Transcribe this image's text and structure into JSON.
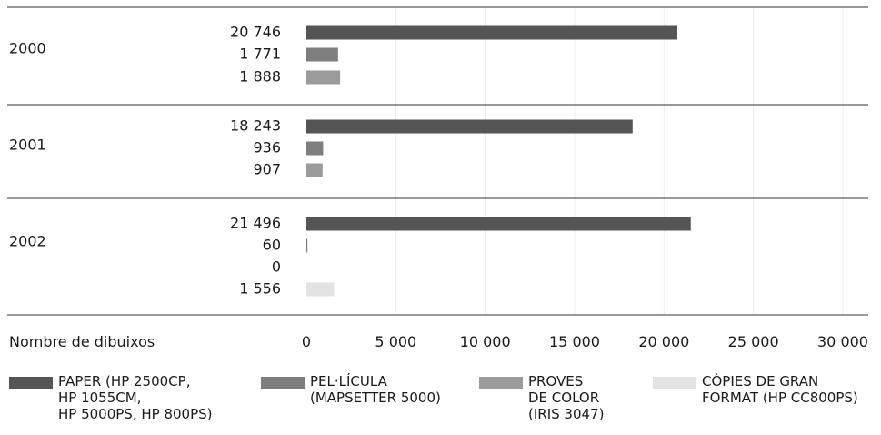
{
  "chart_data": {
    "type": "bar",
    "orientation": "horizontal",
    "xlabel": "Nombre de dibuixos",
    "xlim": [
      0,
      30000
    ],
    "xticks": [
      "0",
      "5 000",
      "10 000",
      "15 000",
      "20 000",
      "25 000",
      "30 000"
    ],
    "tick_values": [
      0,
      5000,
      10000,
      15000,
      20000,
      25000,
      30000
    ],
    "grid": true,
    "legend_position": "bottom",
    "series": [
      {
        "name": "PAPER (HP 2500CP,\nHP 1055CM,\nHP 5000PS, HP 800PS)",
        "color": "#555555"
      },
      {
        "name": "PEL·LÍCULA\n(MAPSETTER 5000)",
        "color": "#7e7e7e"
      },
      {
        "name": "PROVES\nDE COLOR\n(IRIS 3047)",
        "color": "#9b9b9b"
      },
      {
        "name": "CÒPIES DE GRAN\nFORMAT (HP CC800PS)",
        "color": "#e3e3e3"
      }
    ],
    "groups": [
      {
        "year": "2000",
        "bars": [
          {
            "series": 0,
            "value": 20746,
            "label": "20 746"
          },
          {
            "series": 1,
            "value": 1771,
            "label": "1 771"
          },
          {
            "series": 2,
            "value": 1888,
            "label": "1 888"
          }
        ]
      },
      {
        "year": "2001",
        "bars": [
          {
            "series": 0,
            "value": 18243,
            "label": "18 243"
          },
          {
            "series": 1,
            "value": 936,
            "label": "936"
          },
          {
            "series": 2,
            "value": 907,
            "label": "907"
          }
        ]
      },
      {
        "year": "2002",
        "bars": [
          {
            "series": 0,
            "value": 21496,
            "label": "21 496"
          },
          {
            "series": 1,
            "value": 60,
            "label": "60"
          },
          {
            "series": 2,
            "value": 0,
            "label": "0"
          },
          {
            "series": 3,
            "value": 1556,
            "label": "1 556"
          }
        ]
      }
    ]
  }
}
